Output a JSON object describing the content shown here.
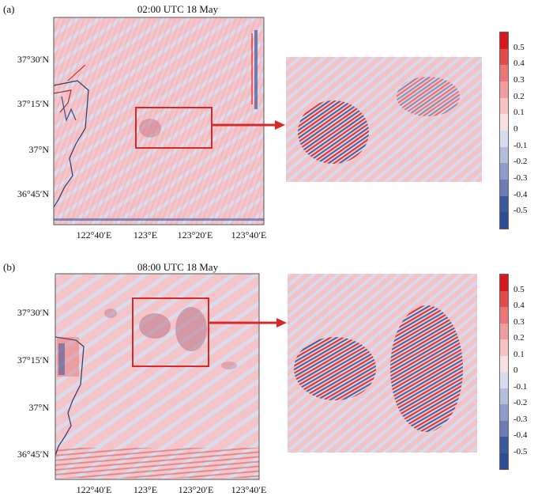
{
  "panels": [
    {
      "label": "(a)",
      "title": "02:00 UTC 18 May",
      "y_ticks": [
        "37°30′N",
        "37°15′N",
        "37°N",
        "36°45′N"
      ],
      "x_ticks": [
        "122°40′E",
        "123°E",
        "123°20′E",
        "123°40′E"
      ]
    },
    {
      "label": "(b)",
      "title": "08:00 UTC 18 May",
      "y_ticks": [
        "37°30′N",
        "37°15′N",
        "37°N",
        "36°45′N"
      ],
      "x_ticks": [
        "122°40′E",
        "123°E",
        "123°20′E",
        "123°40′E"
      ]
    }
  ],
  "colorbar": {
    "labels": [
      "0.5",
      "0.4",
      "0.3",
      "0.2",
      "0.1",
      "0",
      "-0.1",
      "-0.2",
      "-0.3",
      "-0.4",
      "-0.5"
    ],
    "colors": [
      "#d7191c",
      "#e34a4a",
      "#ec7575",
      "#f29c9c",
      "#f7c2c2",
      "#fbe0e0",
      "#d8dcee",
      "#b4bddd",
      "#8f9dcb",
      "#6a7db8",
      "#3a5aa0",
      "#2b4d96"
    ]
  },
  "colors": {
    "field_base": "#f4c4c8",
    "field_alt": "#d9dced",
    "highlight_box": "#d62a2a",
    "coast": "#2a3a6a"
  },
  "chart_data": {
    "type": "heatmap",
    "panels": [
      "02:00 UTC 18 May",
      "08:00 UTC 18 May"
    ],
    "colorbar_range": [
      -0.5,
      0.5
    ],
    "colorbar_ticks": [
      0.5,
      0.4,
      0.3,
      0.2,
      0.1,
      0,
      -0.1,
      -0.2,
      -0.3,
      -0.4,
      -0.5
    ],
    "x_ticks": [
      "122°40′E",
      "123°E",
      "123°20′E",
      "123°40′E"
    ],
    "y_ticks": [
      "37°30′N",
      "37°15′N",
      "37°N",
      "36°45′N"
    ]
  }
}
